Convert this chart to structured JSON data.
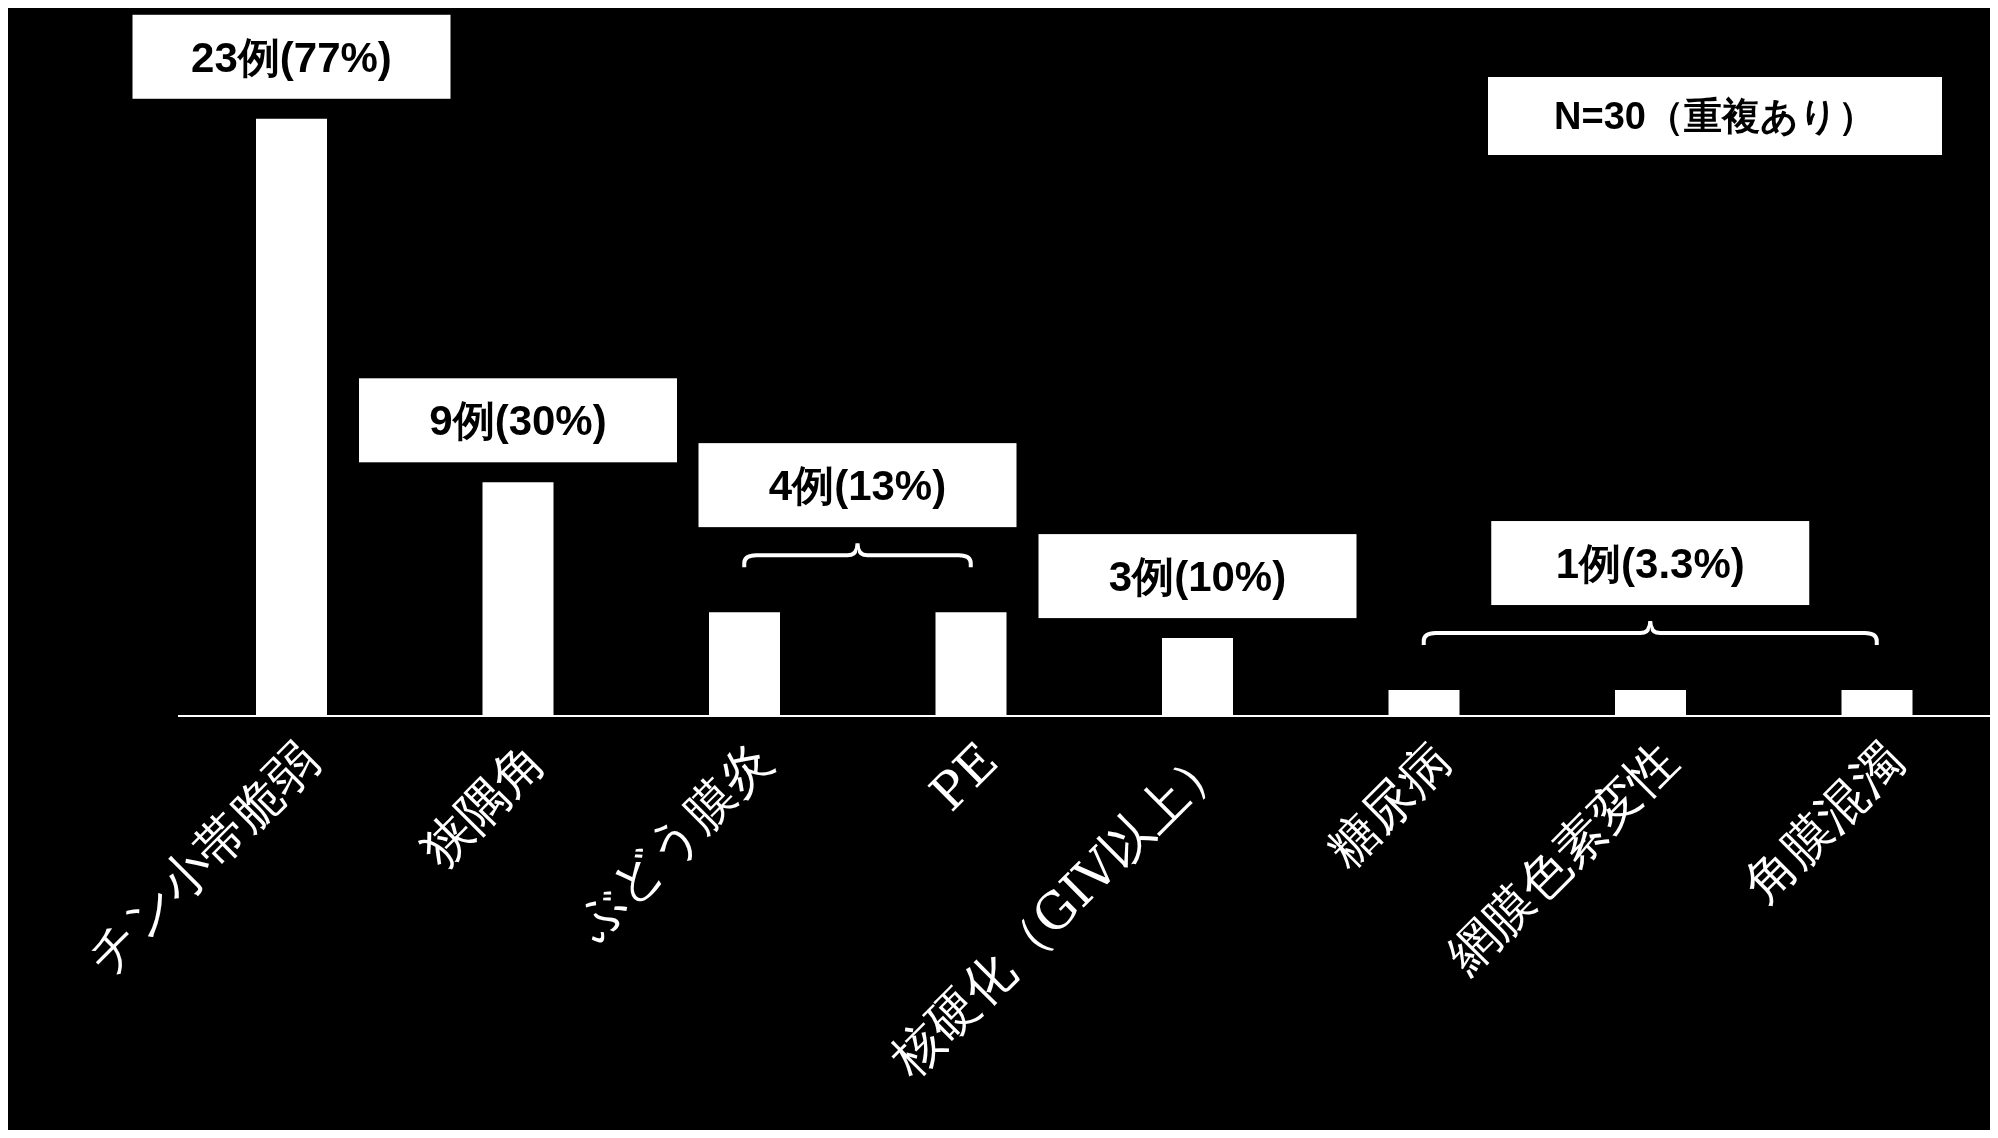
{
  "chart_data": {
    "type": "bar",
    "categories": [
      "チン小帯脆弱",
      "狭隅角",
      "ぶどう膜炎",
      "PE",
      "核硬化（GIV以上）",
      "糖尿病",
      "網膜色素変性",
      "角膜混濁"
    ],
    "values": [
      23,
      9,
      4,
      4,
      3,
      1,
      1,
      1
    ],
    "color": "#ffffff",
    "value_labels": [
      "23例(77%)",
      "9例(30%)",
      null,
      null,
      "3例(10%)",
      null,
      null,
      null
    ],
    "annotations": [
      "N=30（重複あり）",
      {
        "text": "4例(13%)",
        "x": "ぶどう膜炎",
        "y": 4
      },
      {
        "text": "1例(3.3%)",
        "x": "網膜色素変性",
        "y": 1
      }
    ]
  }
}
